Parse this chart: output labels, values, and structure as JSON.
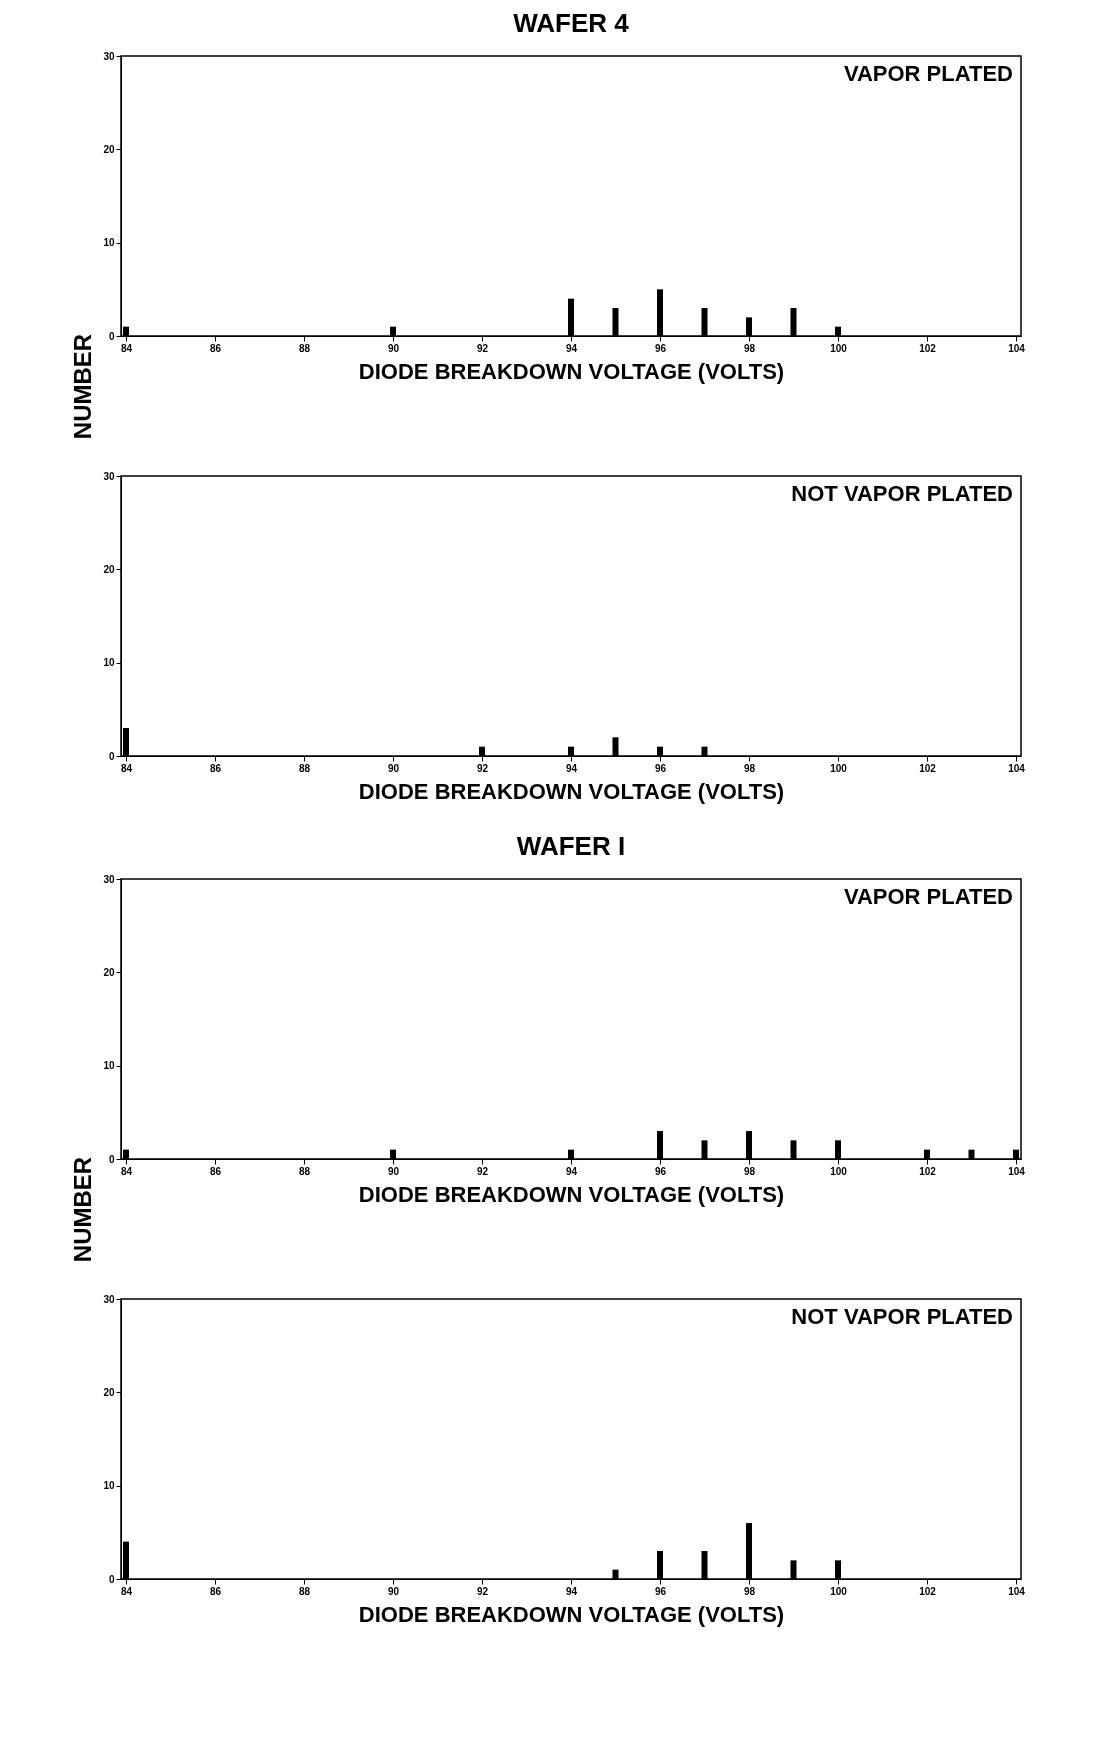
{
  "chart_data": [
    {
      "type": "bar",
      "title": "WAFER 4",
      "ylabel": "NUMBER",
      "xlabel": "DIODE BREAKDOWN  VOLTAGE (VOLTS)",
      "annotations": [
        "VAPOR PLATED"
      ],
      "x": [
        84,
        90,
        94,
        95,
        96,
        97,
        98,
        99,
        100
      ],
      "values": [
        1,
        1,
        4,
        3,
        5,
        3,
        2,
        3,
        1
      ],
      "color": "#000000",
      "xlim": [
        84,
        104
      ],
      "xticks": [
        84,
        86,
        88,
        90,
        92,
        94,
        96,
        98,
        100,
        102,
        104
      ],
      "ylim": [
        0,
        30
      ],
      "yticks": [
        0,
        10,
        20,
        30
      ],
      "grid": false
    },
    {
      "type": "bar",
      "xlabel": "DIODE BREAKDOWN  VOLTAGE (VOLTS)",
      "annotations": [
        "NOT VAPOR PLATED"
      ],
      "x": [
        84,
        92,
        94,
        95,
        96,
        97
      ],
      "values": [
        3,
        1,
        1,
        2,
        1,
        1
      ],
      "color": "#000000",
      "xlim": [
        84,
        104
      ],
      "xticks": [
        84,
        86,
        88,
        90,
        92,
        94,
        96,
        98,
        100,
        102,
        104
      ],
      "ylim": [
        0,
        30
      ],
      "yticks": [
        0,
        10,
        20,
        30
      ],
      "grid": false
    },
    {
      "type": "bar",
      "title": "WAFER I",
      "ylabel": "NUMBER",
      "xlabel": "DIODE BREAKDOWN  VOLTAGE (VOLTS)",
      "annotations": [
        "VAPOR PLATED"
      ],
      "x": [
        84,
        90,
        94,
        96,
        97,
        98,
        99,
        100,
        102,
        103,
        104
      ],
      "values": [
        1,
        1,
        1,
        3,
        2,
        3,
        2,
        2,
        1,
        1,
        1
      ],
      "color": "#000000",
      "xlim": [
        84,
        104
      ],
      "xticks": [
        84,
        86,
        88,
        90,
        92,
        94,
        96,
        98,
        100,
        102,
        104
      ],
      "ylim": [
        0,
        30
      ],
      "yticks": [
        0,
        10,
        20,
        30
      ],
      "grid": false
    },
    {
      "type": "bar",
      "xlabel": "DIODE BREAKDOWN  VOLTAGE (VOLTS)",
      "annotations": [
        "NOT VAPOR PLATED"
      ],
      "x": [
        84,
        95,
        96,
        97,
        98,
        99,
        100
      ],
      "values": [
        4,
        1,
        3,
        3,
        6,
        2,
        2
      ],
      "color": "#000000",
      "xlim": [
        84,
        104
      ],
      "xticks": [
        84,
        86,
        88,
        90,
        92,
        94,
        96,
        98,
        100,
        102,
        104
      ],
      "ylim": [
        0,
        30
      ],
      "yticks": [
        0,
        10,
        20,
        30
      ],
      "grid": false
    }
  ]
}
